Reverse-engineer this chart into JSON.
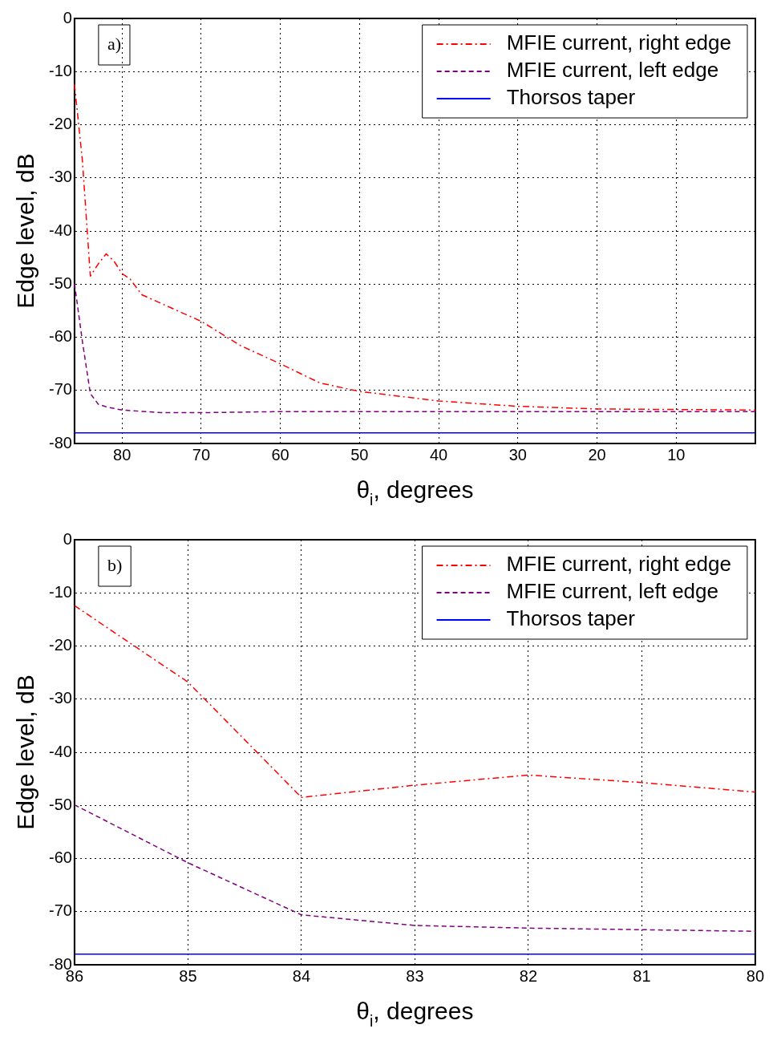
{
  "chart_data": [
    {
      "type": "line",
      "annotations": [
        "a)"
      ],
      "xlabel": "θ$_{i}$, degrees",
      "ylabel": "Edge level, dB",
      "xlim": [
        86,
        0
      ],
      "xticks": [
        80,
        70,
        60,
        50,
        40,
        30,
        20,
        10
      ],
      "ylim": [
        -80,
        0
      ],
      "yticks": [
        0,
        -10,
        -20,
        -30,
        -40,
        -50,
        -60,
        -70,
        -80
      ],
      "grid": true,
      "legend": "top right",
      "marker": "none",
      "series": [
        {
          "name": "MFIE current, right edge",
          "color": "#ff0000",
          "line_style": "dashdot",
          "x": [
            86,
            85,
            84,
            83,
            82,
            81,
            80,
            79,
            77.5,
            76,
            70,
            65,
            60,
            55,
            50,
            40,
            30,
            20,
            10,
            0
          ],
          "values": [
            -12.4,
            -26.8,
            -48.5,
            -46.2,
            -44.3,
            -45.7,
            -48,
            -49,
            -52,
            -53,
            -57,
            -61.6,
            -65,
            -68.6,
            -70.2,
            -72,
            -73,
            -73.5,
            -73.6,
            -73.7
          ]
        },
        {
          "name": "MFIE current, left edge",
          "color": "#800080",
          "line_style": "dashed",
          "x": [
            86,
            85,
            84,
            83,
            82,
            81,
            80,
            75,
            70,
            60,
            50,
            40,
            30,
            20,
            10,
            0
          ],
          "values": [
            -49.9,
            -60.8,
            -70.6,
            -72.6,
            -73.1,
            -73.4,
            -73.7,
            -74.2,
            -74.2,
            -74,
            -74,
            -74,
            -74,
            -74,
            -74,
            -74
          ]
        },
        {
          "name": "Thorsos taper",
          "color": "#0000ff",
          "line_style": "solid",
          "x": [
            86,
            0
          ],
          "values": [
            -78,
            -78
          ]
        }
      ]
    },
    {
      "type": "line",
      "annotations": [
        "b)"
      ],
      "xlabel": "θ$_{i}$, degrees",
      "ylabel": "Edge level, dB",
      "xlim": [
        86,
        80
      ],
      "xticks": [
        86,
        85,
        84,
        83,
        82,
        81,
        80
      ],
      "ylim": [
        -80,
        0
      ],
      "yticks": [
        0,
        -10,
        -20,
        -30,
        -40,
        -50,
        -60,
        -70,
        -80
      ],
      "grid": true,
      "legend": "top right",
      "marker": "none",
      "series": [
        {
          "name": "MFIE current, right edge",
          "color": "#ff0000",
          "line_style": "dashdot",
          "x": [
            86,
            85,
            84,
            83,
            82,
            81,
            80
          ],
          "values": [
            -12.4,
            -26.8,
            -48.5,
            -46.2,
            -44.3,
            -45.7,
            -47.5
          ]
        },
        {
          "name": "MFIE current, left edge",
          "color": "#800080",
          "line_style": "dashed",
          "x": [
            86,
            85,
            84,
            83,
            82,
            81,
            80
          ],
          "values": [
            -49.9,
            -60.8,
            -70.6,
            -72.6,
            -73.1,
            -73.4,
            -73.7
          ]
        },
        {
          "name": "Thorsos taper",
          "color": "#0000ff",
          "line_style": "solid",
          "x": [
            86,
            80
          ],
          "values": [
            -78,
            -78
          ]
        }
      ]
    }
  ]
}
